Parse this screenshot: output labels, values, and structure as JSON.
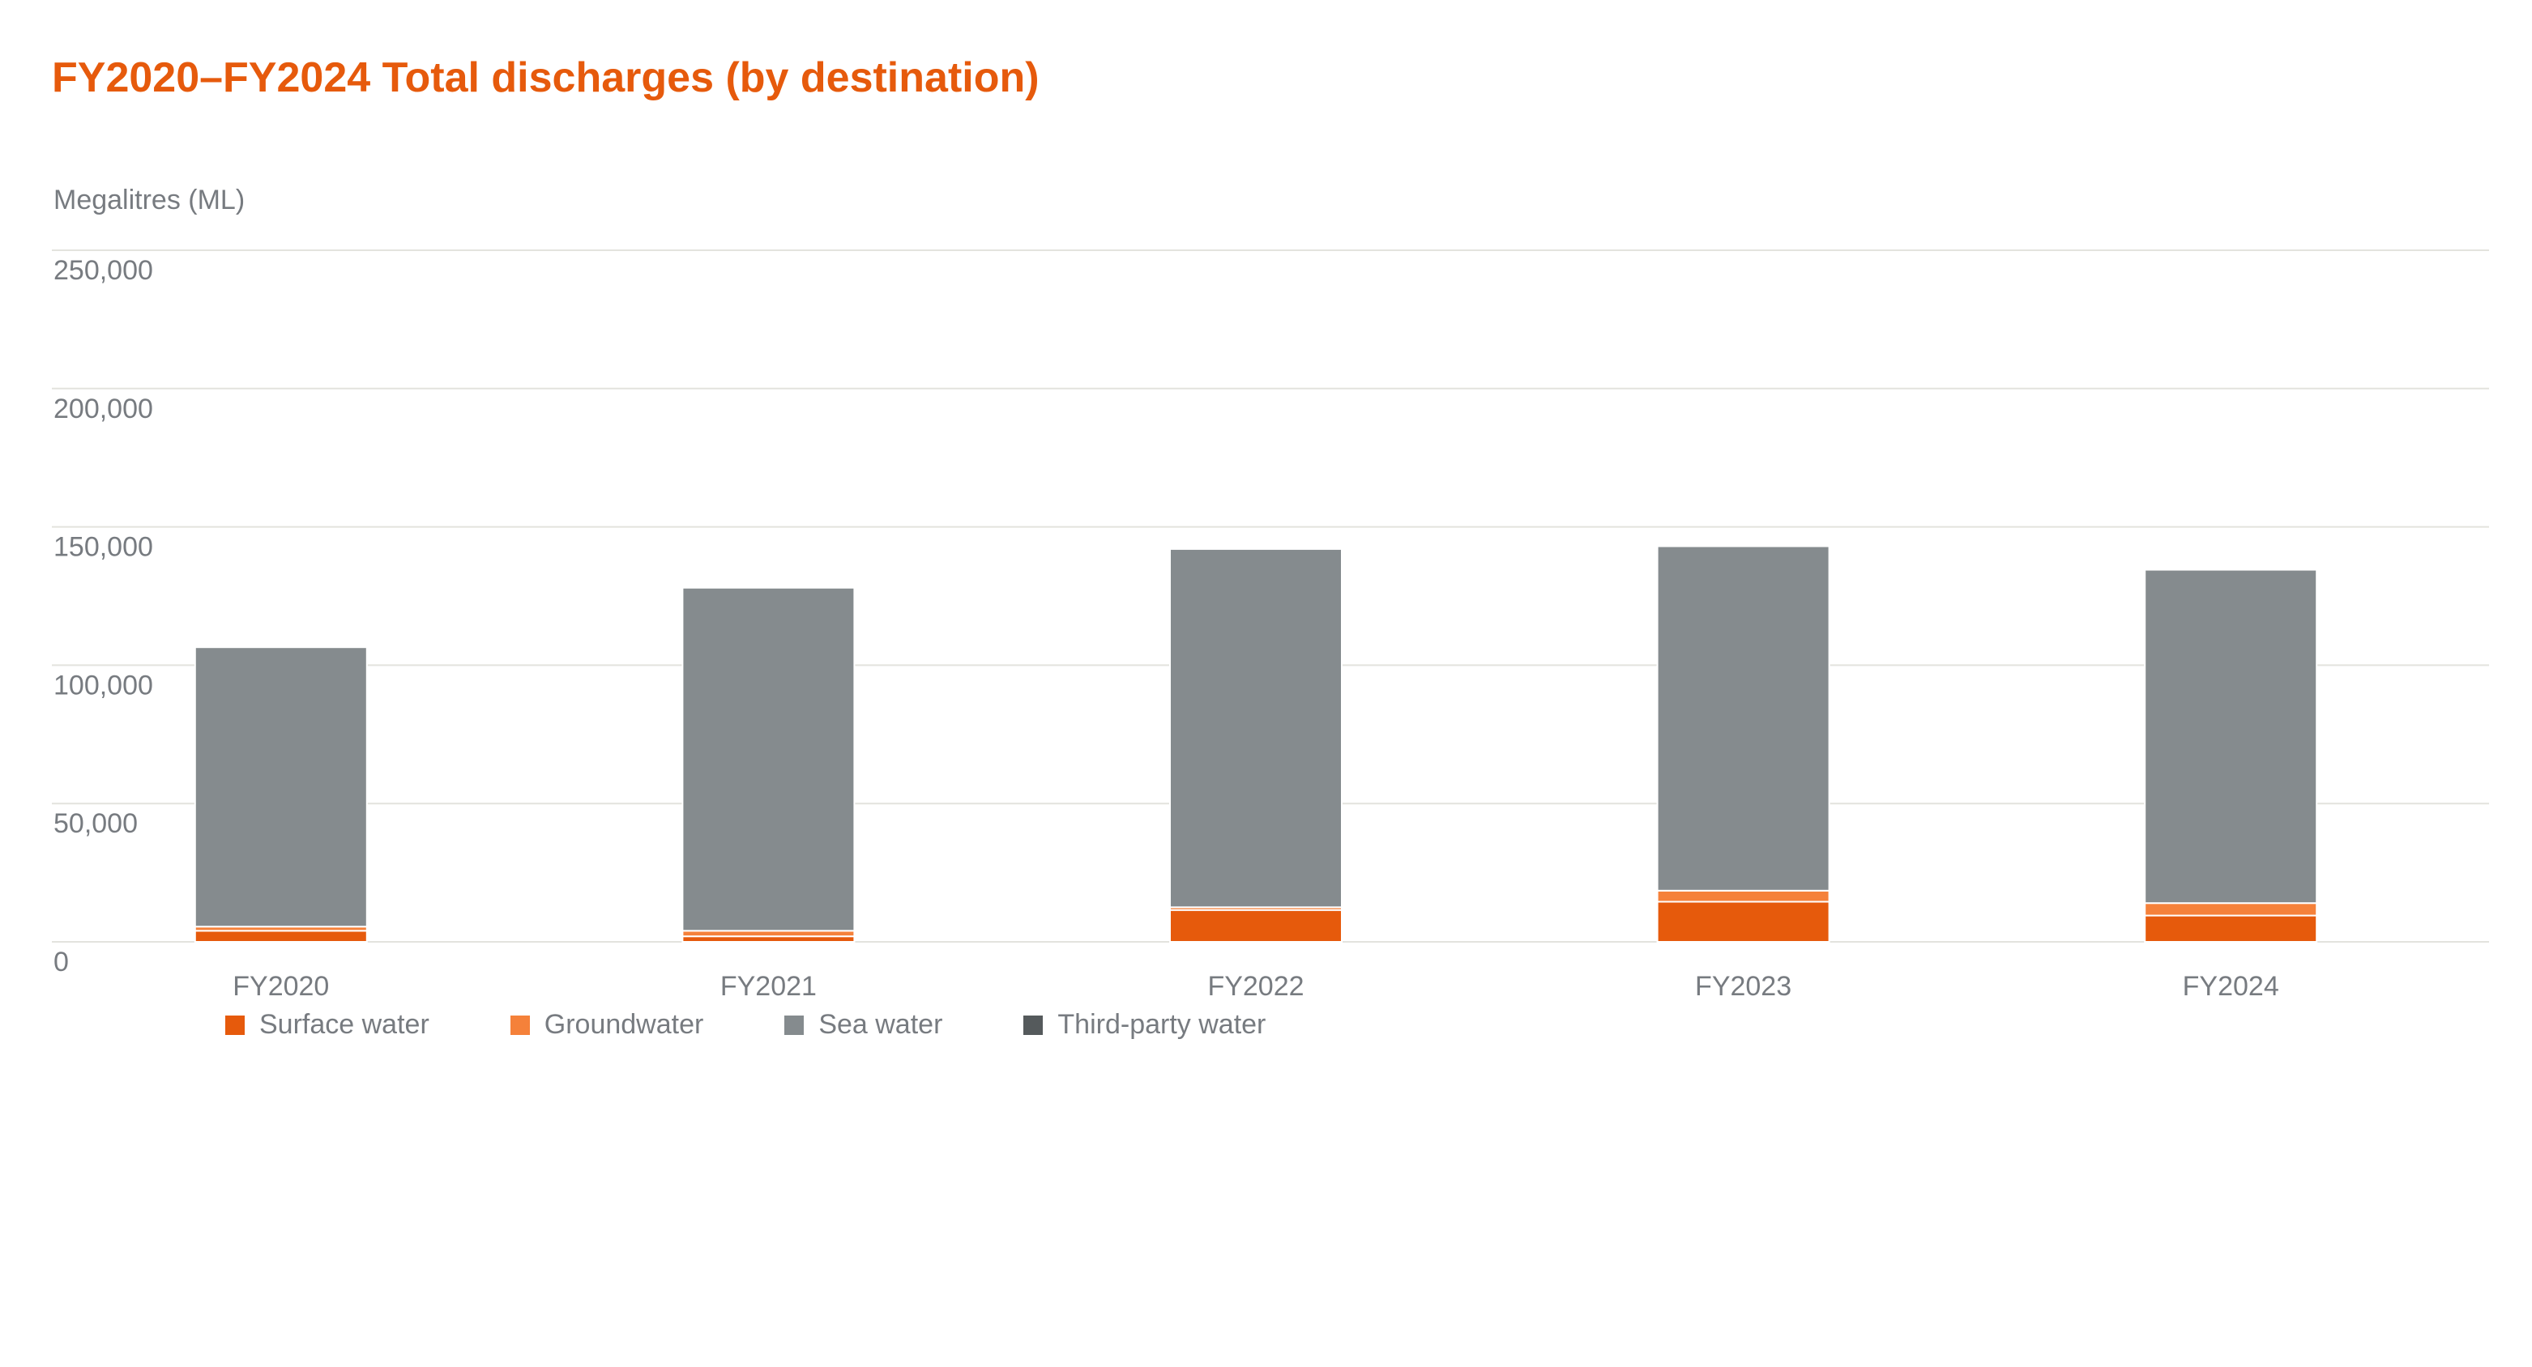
{
  "chart_data": {
    "type": "bar",
    "stacked": true,
    "title": "FY2020–FY2024 Total discharges (by destination)",
    "ylabel": "Megalitres (ML)",
    "xlabel": "",
    "ylim": [
      0,
      250000
    ],
    "yticks": [
      0,
      50000,
      100000,
      150000,
      200000,
      250000
    ],
    "ytick_labels": [
      "0",
      "50,000",
      "100,000",
      "150,000",
      "200,000",
      "250,000"
    ],
    "grid": true,
    "legend_position": "bottom-left",
    "categories": [
      "FY2020",
      "FY2021",
      "FY2022",
      "FY2023",
      "FY2024"
    ],
    "series": [
      {
        "name": "Surface water",
        "color": "#e65a0c",
        "values": [
          4000,
          2000,
          11500,
          14500,
          9500
        ]
      },
      {
        "name": "Groundwater",
        "color": "#f5813a",
        "values": [
          1500,
          2000,
          1000,
          4000,
          4500
        ]
      },
      {
        "name": "Sea water",
        "color": "#858b8e",
        "values": [
          101000,
          124000,
          129500,
          124500,
          120500
        ]
      },
      {
        "name": "Third-party water",
        "color": "#555a5c",
        "values": [
          0,
          0,
          0,
          0,
          0
        ]
      }
    ]
  }
}
